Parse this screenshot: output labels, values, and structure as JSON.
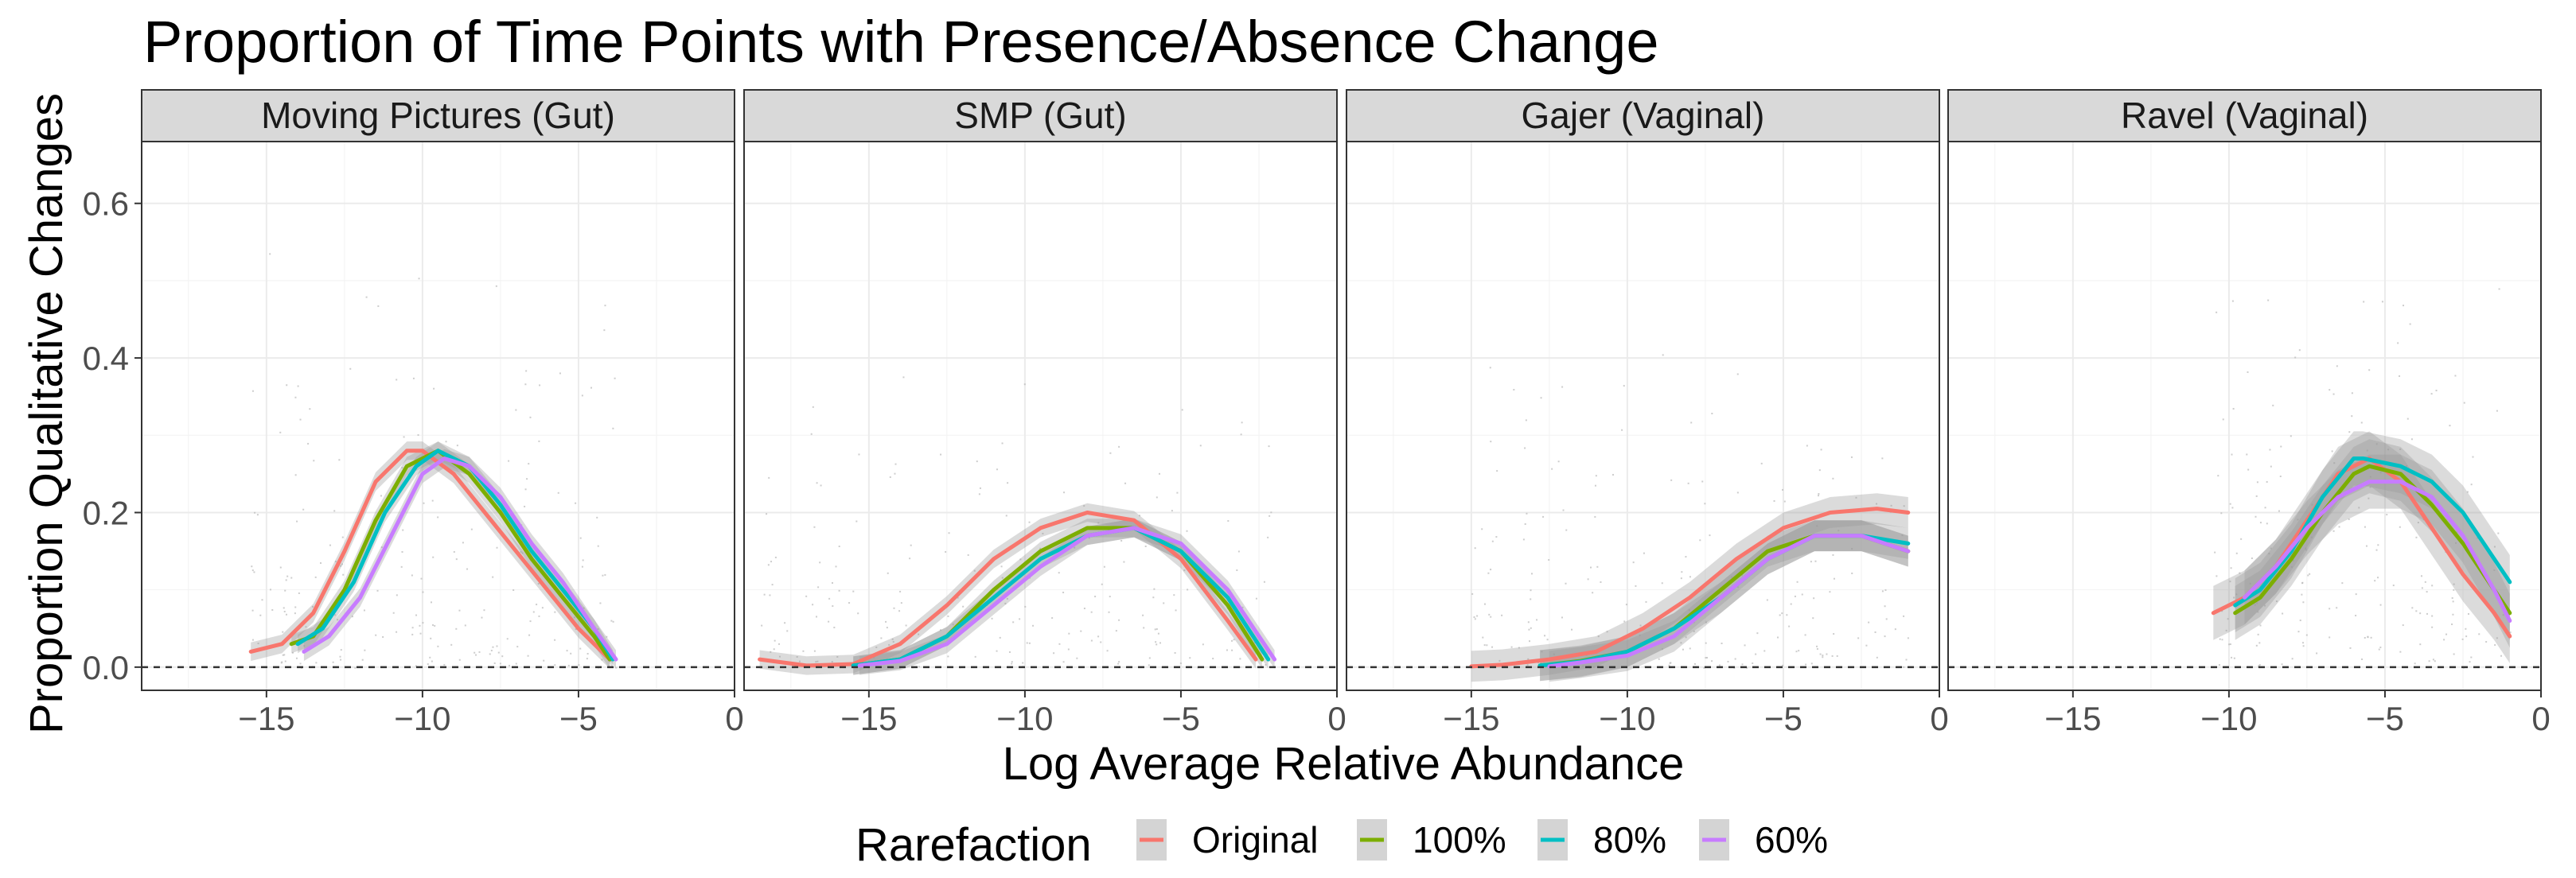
{
  "chart_data": {
    "type": "line",
    "title": "Proportion of Time Points with Presence/Absence Change",
    "xlabel": "Log Average Relative Abundance",
    "ylabel": "Proportion Qualitative Changes",
    "xlim": [
      -19,
      0
    ],
    "ylim": [
      -0.03,
      0.68
    ],
    "x_ticks": [
      -15,
      -10,
      -5,
      0
    ],
    "x_tick_labels": [
      "−15",
      "−10",
      "−5",
      "0"
    ],
    "y_ticks": [
      0.0,
      0.2,
      0.4,
      0.6
    ],
    "y_tick_labels": [
      "0.0",
      "0.2",
      "0.4",
      "0.6"
    ],
    "reference_line": 0.0,
    "legend": {
      "title": "Rarefaction",
      "position": "bottom",
      "entries": [
        {
          "label": "Original",
          "color": "#F8766D"
        },
        {
          "label": "100%",
          "color": "#7CAE00"
        },
        {
          "label": "80%",
          "color": "#00BFC4"
        },
        {
          "label": "60%",
          "color": "#C77CFF"
        }
      ]
    },
    "panels": [
      {
        "title": "Moving Pictures (Gut)",
        "series": [
          {
            "name": "Original",
            "x": [
              -15.5,
              -14.5,
              -13.5,
              -12.5,
              -11.5,
              -10.5,
              -10,
              -9,
              -8,
              -7,
              -6,
              -5,
              -4
            ],
            "y": [
              0.02,
              0.03,
              0.07,
              0.15,
              0.24,
              0.28,
              0.28,
              0.25,
              0.2,
              0.15,
              0.1,
              0.05,
              0.01
            ]
          },
          {
            "name": "100%",
            "x": [
              -14.2,
              -13.5,
              -12.5,
              -11.5,
              -10.5,
              -9.5,
              -8.5,
              -7.5,
              -6.5,
              -5.5,
              -4.5,
              -4
            ],
            "y": [
              0.03,
              0.04,
              0.1,
              0.19,
              0.26,
              0.28,
              0.25,
              0.2,
              0.14,
              0.09,
              0.04,
              0.01
            ]
          },
          {
            "name": "80%",
            "x": [
              -14,
              -13.2,
              -12.2,
              -11.2,
              -10.2,
              -9.5,
              -8.5,
              -7.5,
              -6.5,
              -5.5,
              -4.5,
              -3.9
            ],
            "y": [
              0.03,
              0.05,
              0.11,
              0.2,
              0.26,
              0.28,
              0.26,
              0.21,
              0.15,
              0.1,
              0.05,
              0.01
            ]
          },
          {
            "name": "60%",
            "x": [
              -13.8,
              -13,
              -12,
              -11,
              -10,
              -9.3,
              -8.5,
              -7.5,
              -6.5,
              -5.5,
              -4.5,
              -3.8
            ],
            "y": [
              0.02,
              0.04,
              0.09,
              0.17,
              0.25,
              0.27,
              0.26,
              0.22,
              0.16,
              0.11,
              0.05,
              0.01
            ]
          }
        ]
      },
      {
        "title": "SMP (Gut)",
        "series": [
          {
            "name": "Original",
            "x": [
              -18.5,
              -17,
              -15.5,
              -14,
              -12.5,
              -11,
              -9.5,
              -8,
              -6.5,
              -5,
              -3.5,
              -2.6
            ],
            "y": [
              0.01,
              0.002,
              0.004,
              0.03,
              0.08,
              0.14,
              0.18,
              0.2,
              0.19,
              0.14,
              0.06,
              0.01
            ]
          },
          {
            "name": "100%",
            "x": [
              -15.5,
              -14,
              -12.5,
              -11,
              -9.5,
              -8,
              -6.5,
              -5,
              -3.5,
              -2.4
            ],
            "y": [
              0.002,
              0.01,
              0.04,
              0.1,
              0.15,
              0.18,
              0.18,
              0.15,
              0.08,
              0.01
            ]
          },
          {
            "name": "80%",
            "x": [
              -15.5,
              -14,
              -12.5,
              -11,
              -9.5,
              -8,
              -6.5,
              -5,
              -3.5,
              -2.2
            ],
            "y": [
              0.002,
              0.01,
              0.04,
              0.09,
              0.14,
              0.17,
              0.18,
              0.15,
              0.09,
              0.01
            ]
          },
          {
            "name": "60%",
            "x": [
              -15.3,
              -14,
              -12.5,
              -11,
              -9.5,
              -8,
              -6.5,
              -5,
              -3.5,
              -2
            ],
            "y": [
              0.002,
              0.008,
              0.03,
              0.08,
              0.13,
              0.17,
              0.18,
              0.16,
              0.1,
              0.01
            ]
          }
        ]
      },
      {
        "title": "Gajer (Vaginal)",
        "series": [
          {
            "name": "Original",
            "x": [
              -15,
              -14,
              -12.5,
              -11,
              -9.5,
              -8,
              -6.5,
              -5,
              -3.5,
              -2,
              -1
            ],
            "y": [
              0.001,
              0.003,
              0.01,
              0.02,
              0.05,
              0.09,
              0.14,
              0.18,
              0.2,
              0.205,
              0.2
            ]
          },
          {
            "name": "100%",
            "x": [
              -12.8,
              -11.5,
              -10,
              -8.5,
              -7,
              -5.5,
              -4,
              -2.5,
              -1
            ],
            "y": [
              0.002,
              0.008,
              0.02,
              0.05,
              0.1,
              0.15,
              0.17,
              0.17,
              0.15
            ]
          },
          {
            "name": "80%",
            "x": [
              -12.8,
              -11.5,
              -10,
              -8.5,
              -7,
              -5.5,
              -4,
              -2.5,
              -1
            ],
            "y": [
              0.002,
              0.007,
              0.02,
              0.05,
              0.09,
              0.14,
              0.17,
              0.17,
              0.16
            ]
          },
          {
            "name": "60%",
            "x": [
              -12.5,
              -11.5,
              -10,
              -8.5,
              -7,
              -5.5,
              -4,
              -2.5,
              -1
            ],
            "y": [
              0.001,
              0.006,
              0.015,
              0.04,
              0.09,
              0.14,
              0.17,
              0.17,
              0.15
            ]
          }
        ]
      },
      {
        "title": "Ravel (Vaginal)",
        "series": [
          {
            "name": "Original",
            "x": [
              -10.5,
              -9.5,
              -8.5,
              -7.5,
              -6.5,
              -5.5,
              -4.5,
              -3.5,
              -2.5,
              -1.5,
              -1
            ],
            "y": [
              0.07,
              0.09,
              0.13,
              0.19,
              0.25,
              0.27,
              0.24,
              0.18,
              0.12,
              0.07,
              0.04
            ]
          },
          {
            "name": "100%",
            "x": [
              -9.8,
              -9,
              -8,
              -7,
              -6,
              -5.5,
              -4.5,
              -3.5,
              -2.5,
              -1.5,
              -1
            ],
            "y": [
              0.07,
              0.09,
              0.14,
              0.2,
              0.25,
              0.26,
              0.25,
              0.21,
              0.16,
              0.1,
              0.07
            ]
          },
          {
            "name": "80%",
            "x": [
              -9.8,
              -9,
              -8,
              -7,
              -6,
              -5.7,
              -4.5,
              -3.5,
              -2.5,
              -1.5,
              -1
            ],
            "y": [
              0.08,
              0.1,
              0.15,
              0.22,
              0.27,
              0.27,
              0.26,
              0.24,
              0.2,
              0.14,
              0.11
            ]
          },
          {
            "name": "60%",
            "x": [
              -9.5,
              -8.5,
              -7.5,
              -6.5,
              -5.5,
              -4.5,
              -3.5,
              -2.5,
              -1.5,
              -1
            ],
            "y": [
              0.09,
              0.13,
              0.18,
              0.22,
              0.24,
              0.24,
              0.22,
              0.17,
              0.1,
              0.06
            ]
          }
        ]
      }
    ]
  }
}
